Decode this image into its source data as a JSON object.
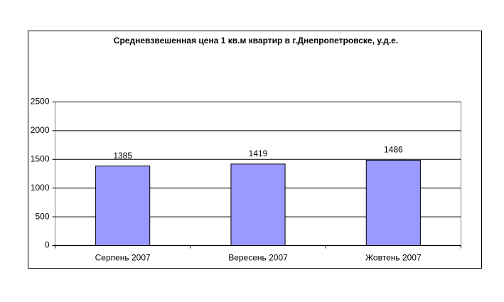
{
  "chart_data": {
    "type": "bar",
    "title": "Средневзвешенная цена 1 кв.м квартир в г.Днепропетровске, у.д.е.",
    "categories": [
      "Серпень 2007",
      "Вересень 2007",
      "Жовтень 2007"
    ],
    "values": [
      1385,
      1419,
      1486
    ],
    "color": "#9999ff",
    "ylim": [
      0,
      2500
    ],
    "yticks": [
      0,
      500,
      1000,
      1500,
      2000,
      2500
    ],
    "grid": true
  }
}
